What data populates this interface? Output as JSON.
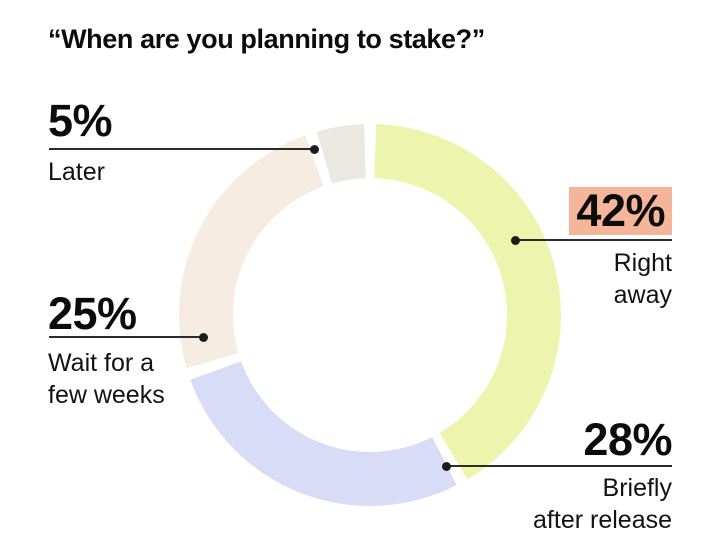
{
  "title": "“When are you planning to stake?”",
  "chart_data": {
    "type": "pie",
    "subtype": "donut",
    "title": "“When are you planning to stake?”",
    "direction": "clockwise",
    "start_angle_deg": 0,
    "gap_deg": 3.6,
    "total": 100,
    "legend_position": "callout-labels",
    "highlight_color": "#f5b59a",
    "segments": [
      {
        "id": "right-away",
        "label": "Right away",
        "label_lines": [
          "Right",
          "away"
        ],
        "pct_label": "42%",
        "value": 42,
        "color": "#edf4ad",
        "highlighted": true
      },
      {
        "id": "briefly-after-release",
        "label": "Briefly after release",
        "label_lines": [
          "Briefly",
          "after release"
        ],
        "pct_label": "28%",
        "value": 28,
        "color": "#d9dcf6",
        "highlighted": false
      },
      {
        "id": "wait-few-weeks",
        "label": "Wait for a few weeks",
        "label_lines": [
          "Wait for a",
          "few weeks"
        ],
        "pct_label": "25%",
        "value": 25,
        "color": "#f7ece2",
        "highlighted": false
      },
      {
        "id": "later",
        "label": "Later",
        "label_lines": [
          "Later"
        ],
        "pct_label": "5%",
        "value": 5,
        "color": "#eae8e1",
        "highlighted": false
      }
    ]
  },
  "colors": {
    "background": "#ffffff",
    "text": "#0c0c0c",
    "leader_line": "#2b2b2b",
    "highlight": "#f5b59a"
  }
}
